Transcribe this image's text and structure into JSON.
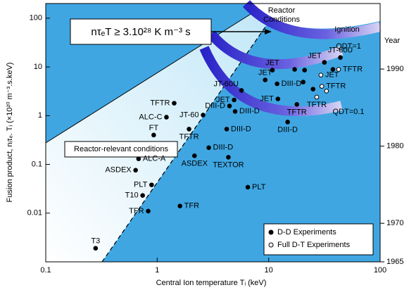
{
  "chart_data": {
    "type": "scatter",
    "xlabel": "Central Ion temperature Tᵢ (keV)",
    "ylabel": "Fusion product, nᵢτₑ. Tᵢ (×10²⁰ m⁻³.s.keV)",
    "y2label": "Year",
    "log_x": true,
    "log_y": true,
    "xlim": [
      0.1,
      100
    ],
    "ylim": [
      0.001,
      200
    ],
    "xticks": [
      0.1,
      1,
      10,
      100
    ],
    "yticks": [
      0.01,
      0.1,
      1,
      10,
      100
    ],
    "y2lim": [
      1965,
      1998.5
    ],
    "y2ticks": [
      1965,
      1970,
      1980,
      1990
    ],
    "background": "#3fa6e2",
    "legend": "lower right",
    "series": [
      {
        "name": "D-D Experiments",
        "marker": "filled",
        "color": "#000000",
        "x": [
          0.28,
          0.83,
          1.6,
          0.74,
          0.89,
          6.5,
          0.64,
          0.68,
          4.35,
          2.16,
          2.9,
          0.93,
          1.93,
          4.2,
          1.21,
          2.58,
          1.42,
          4.45,
          5.0,
          4.9,
          5.7,
          9.3,
          10.8,
          12.1,
          11.9,
          14.8,
          17.9,
          17.1,
          21,
          20.4,
          31.6,
          44,
          37.7,
          25
        ],
        "values": [
          0.0019,
          0.011,
          0.014,
          0.023,
          0.038,
          0.034,
          0.076,
          0.13,
          0.14,
          0.15,
          0.22,
          0.4,
          0.53,
          0.53,
          0.93,
          1.03,
          1.8,
          1.58,
          1.22,
          2.1,
          3.3,
          5.4,
          8.6,
          2.2,
          4.5,
          0.74,
          1.7,
          8.9,
          8.6,
          4.9,
          12.4,
          15.6,
          8.9,
          3.5
        ],
        "labels": [
          "T3",
          "TFR",
          "TFR",
          "T10",
          "PLT",
          "PLT",
          "ASDEX",
          "ALC-A",
          "TEXTOR",
          "ASDEX",
          "DIII-D",
          "FT",
          "TFTR",
          "DIII-D",
          "ALC-C",
          "JT-60",
          "TFTR",
          "DIII-D",
          "DIII-D",
          "JET",
          "JT-60U",
          "JET",
          "JET",
          "JET",
          "DIII-D",
          "DIII-D",
          "TFTR",
          null,
          null,
          null,
          "JET",
          "JT-60U",
          null,
          null
        ]
      },
      {
        "name": "Full D-T Experiments",
        "marker": "open",
        "color": "#000000",
        "x": [
          29.4,
          42.4,
          30,
          27,
          33
        ],
        "values": [
          6.8,
          8.9,
          4.0,
          2.4,
          3.2
        ],
        "labels": [
          "JET",
          "TFTR",
          "TFTR",
          "TFTR",
          null
        ]
      }
    ],
    "annotations": {
      "criterion": "nτₑT ≥ 3.10²⁸ K m⁻³ s",
      "reactor_conditions": [
        "Reactor",
        "Conditions"
      ],
      "ignition": "Ignition",
      "qdt_1": "QDT=1",
      "qdt_01": "QDT=0.1",
      "reactor_relevant": "Reactor-relevant conditions"
    }
  }
}
